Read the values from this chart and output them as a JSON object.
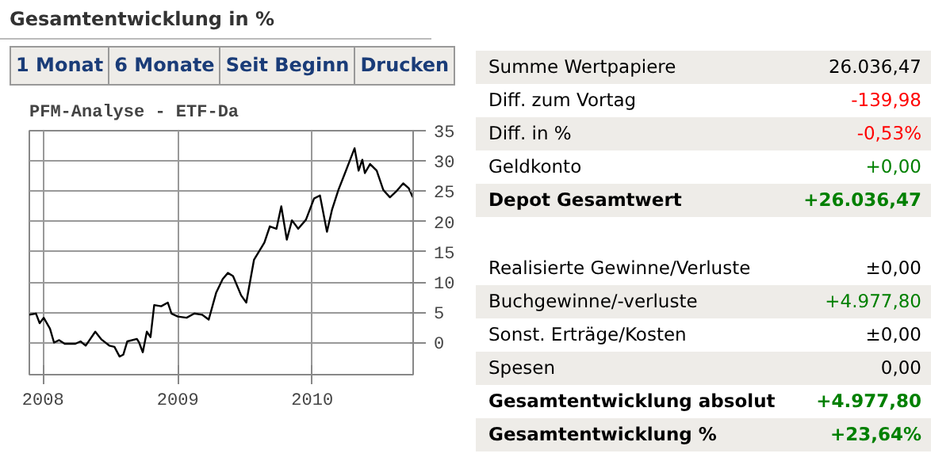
{
  "chart_data": [
    {
      "type": "other",
      "title": "Gesamtentwicklung in %",
      "annotations": [
        "1 Monat",
        "6 Monate",
        "Seit Beginn",
        "Drucken"
      ]
    },
    {
      "type": "line",
      "title": "PFM-Analyse - ETF-Da",
      "x": [
        "2007-11-25",
        "2007-12-13",
        "2007-12-23",
        "2008-01-03",
        "2008-01-20",
        "2008-01-31",
        "2008-02-14",
        "2008-02-29",
        "2008-03-29",
        "2008-04-12",
        "2008-04-26",
        "2008-05-22",
        "2008-06-08",
        "2008-06-29",
        "2008-07-13",
        "2008-07-27",
        "2008-08-06",
        "2008-08-17",
        "2008-09-12",
        "2008-09-18",
        "2008-09-28",
        "2008-10-09",
        "2008-10-19",
        "2008-10-29",
        "2008-11-17",
        "2008-12-05",
        "2008-12-15",
        "2009-01-01",
        "2009-01-25",
        "2009-02-15",
        "2009-03-08",
        "2009-03-26",
        "2009-04-15",
        "2009-05-03",
        "2009-05-17",
        "2009-05-31",
        "2009-06-22",
        "2009-07-06",
        "2009-07-27",
        "2009-08-10",
        "2009-08-24",
        "2009-09-08",
        "2009-09-26",
        "2009-10-09",
        "2009-10-24",
        "2009-11-07",
        "2009-11-24",
        "2009-12-15",
        "2010-01-06",
        "2010-01-22",
        "2010-02-10",
        "2010-02-24",
        "2010-03-13",
        "2010-03-31",
        "2010-04-14",
        "2010-04-26",
        "2010-05-07",
        "2010-05-17",
        "2010-05-24",
        "2010-06-07",
        "2010-06-25",
        "2010-07-13",
        "2010-07-31",
        "2010-08-16",
        "2010-09-05",
        "2010-09-20",
        "2010-10-01"
      ],
      "series": [
        {
          "color": "#000000",
          "values": [
            4.6,
            4.8,
            3.2,
            4.1,
            2.3,
            0,
            0.4,
            -0.2,
            -0.2,
            0.2,
            -0.5,
            1.8,
            0.5,
            -0.5,
            -0.7,
            -2.3,
            -2.0,
            0.2,
            0.6,
            0,
            -1.6,
            1.8,
            0.9,
            6.2,
            6.0,
            6.6,
            4.8,
            4.3,
            4.1,
            4.8,
            4.6,
            3.8,
            8.2,
            10.5,
            11.5,
            11.0,
            7.8,
            6.6,
            13.7,
            15.1,
            16.5,
            19.2,
            18.8,
            22.5,
            17.0,
            20.2,
            18.8,
            20.3,
            23.8,
            24.3,
            18.3,
            22.0,
            25.2,
            28.0,
            30.2,
            32.1,
            28.4,
            30.2,
            28.0,
            29.5,
            28.4,
            25.2,
            24.0,
            24.9,
            26.3,
            25.5,
            24.0
          ]
        }
      ],
      "xlim": [
        "2007-11-25",
        "2010-10-02"
      ],
      "xticks": [
        "2008",
        "2009",
        "2010"
      ],
      "ylim": [
        -5.3,
        35
      ],
      "yticks": [
        0,
        5,
        10,
        15,
        20,
        25,
        30,
        35
      ],
      "grid": true,
      "marker": "none",
      "line_style": "solid"
    },
    {
      "type": "other",
      "annotations": [
        "Summe Wertpapiere",
        "26.036,47",
        "Diff. zum Vortag",
        "-139,98",
        "Diff. in %",
        "-0,53%",
        "Geldkonto",
        "+0,00",
        "Depot Gesamtwert",
        "+26.036,47",
        "Realisierte Gewinne/Verluste",
        "±0,00",
        "Buchgewinne/-verluste",
        "+4.977,80",
        "Sonst. Erträge/Kosten",
        "±0,00",
        "Spesen",
        "0,00",
        "Gesamtentwicklung absolut",
        "+4.977,80",
        "Gesamtentwicklung %",
        "+23,64%"
      ],
      "colors": [
        "#000000",
        "#000000",
        "#000000",
        "#ff0000",
        "#000000",
        "#ff0000",
        "#000000",
        "#008000",
        "#000000",
        "#008000",
        "#000000",
        "#000000",
        "#000000",
        "#008000",
        "#000000",
        "#000000",
        "#000000",
        "#000000",
        "#000000",
        "#008000",
        "#000000",
        "#008000"
      ]
    }
  ]
}
